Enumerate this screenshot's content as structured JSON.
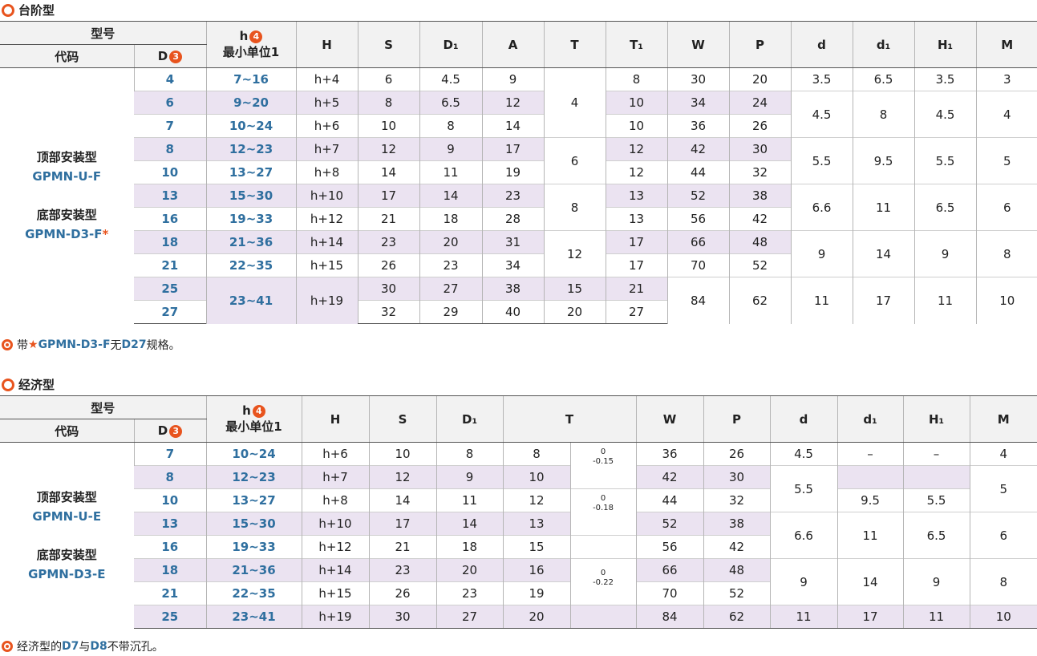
{
  "sec1": {
    "title": "台阶型",
    "head": {
      "model": "型号",
      "code": "代码",
      "d": "D",
      "d_badge": "3",
      "h": "h",
      "h_badge": "4",
      "h_sub": "最小单位1",
      "cols": [
        "H",
        "S",
        "D₁",
        "A",
        "T",
        "T₁",
        "W",
        "P",
        "d",
        "d₁",
        "H₁",
        "M"
      ]
    },
    "codes": {
      "top_label": "顶部安装型",
      "top_code": "GPMN-U-F",
      "bottom_label": "底部安装型",
      "bottom_code": "GPMN-D3-F",
      "star": "*"
    },
    "D": [
      "4",
      "6",
      "7",
      "8",
      "10",
      "13",
      "16",
      "18",
      "21",
      "25",
      "27"
    ],
    "h": [
      "7~16",
      "9~20",
      "10~24",
      "12~23",
      "13~27",
      "15~30",
      "19~33",
      "21~36",
      "22~35",
      "23~41"
    ],
    "H": [
      "h+4",
      "h+5",
      "h+6",
      "h+7",
      "h+8",
      "h+10",
      "h+12",
      "h+14",
      "h+15",
      "h+19"
    ],
    "S": [
      "6",
      "8",
      "10",
      "12",
      "14",
      "17",
      "21",
      "23",
      "26",
      "30",
      "32"
    ],
    "D1": [
      "4.5",
      "6.5",
      "8",
      "9",
      "11",
      "14",
      "18",
      "20",
      "23",
      "27",
      "29"
    ],
    "A": [
      "9",
      "12",
      "14",
      "17",
      "19",
      "23",
      "28",
      "31",
      "34",
      "38",
      "40"
    ],
    "T": [
      "4",
      "6",
      "8",
      "12",
      "15",
      "20"
    ],
    "T1": [
      "8",
      "10",
      "10",
      "12",
      "12",
      "13",
      "13",
      "17",
      "17",
      "21",
      "27"
    ],
    "W": [
      "30",
      "34",
      "36",
      "42",
      "44",
      "52",
      "56",
      "66",
      "70",
      "84"
    ],
    "P": [
      "20",
      "24",
      "26",
      "30",
      "32",
      "38",
      "42",
      "48",
      "52",
      "62"
    ],
    "d": [
      "3.5",
      "4.5",
      "5.5",
      "6.6",
      "9",
      "11"
    ],
    "d1": [
      "6.5",
      "8",
      "9.5",
      "11",
      "14",
      "17"
    ],
    "H1": [
      "3.5",
      "4.5",
      "5.5",
      "6.5",
      "9",
      "11"
    ],
    "M": [
      "3",
      "4",
      "5",
      "6",
      "8",
      "10"
    ],
    "note": {
      "pre": "带",
      "star": "★",
      "code": "GPMN-D3-F",
      "mid": "无",
      "d": "D27",
      "post": "规格。"
    }
  },
  "sec2": {
    "title": "经济型",
    "head": {
      "model": "型号",
      "code": "代码",
      "d": "D",
      "d_badge": "3",
      "h": "h",
      "h_badge": "4",
      "h_sub": "最小单位1",
      "cols": [
        "H",
        "S",
        "D₁",
        "T",
        "W",
        "P",
        "d",
        "d₁",
        "H₁",
        "M"
      ]
    },
    "codes": {
      "top_label": "顶部安装型",
      "top_code": "GPMN-U-E",
      "bottom_label": "底部安装型",
      "bottom_code": "GPMN-D3-E"
    },
    "D": [
      "7",
      "8",
      "10",
      "13",
      "16",
      "18",
      "21",
      "25"
    ],
    "h": [
      "10~24",
      "12~23",
      "13~27",
      "15~30",
      "19~33",
      "21~36",
      "22~35",
      "23~41"
    ],
    "H": [
      "h+6",
      "h+7",
      "h+8",
      "h+10",
      "h+12",
      "h+14",
      "h+15",
      "h+19"
    ],
    "S": [
      "10",
      "12",
      "14",
      "17",
      "21",
      "23",
      "26",
      "30"
    ],
    "D1": [
      "8",
      "9",
      "11",
      "14",
      "18",
      "20",
      "23",
      "27"
    ],
    "T": [
      "8",
      "10",
      "12",
      "13",
      "15",
      "16",
      "19",
      "20"
    ],
    "tol": [
      [
        "0",
        "-0.15"
      ],
      [
        "0",
        "-0.18"
      ],
      [
        "0",
        "-0.22"
      ]
    ],
    "W": [
      "36",
      "42",
      "44",
      "52",
      "56",
      "66",
      "70",
      "84"
    ],
    "P": [
      "26",
      "30",
      "32",
      "38",
      "42",
      "48",
      "52",
      "62"
    ],
    "d": [
      "4.5",
      "5.5",
      "6.6",
      "9",
      "11"
    ],
    "d1": [
      "–",
      "9.5",
      "11",
      "14",
      "17"
    ],
    "H1": [
      "–",
      "5.5",
      "6.5",
      "9",
      "11"
    ],
    "M": [
      "4",
      "5",
      "6",
      "8",
      "10"
    ],
    "note": {
      "pre": "经济型的",
      "d7": "D7",
      "mid": "与",
      "d8": "D8",
      "post": "不带沉孔。"
    }
  }
}
